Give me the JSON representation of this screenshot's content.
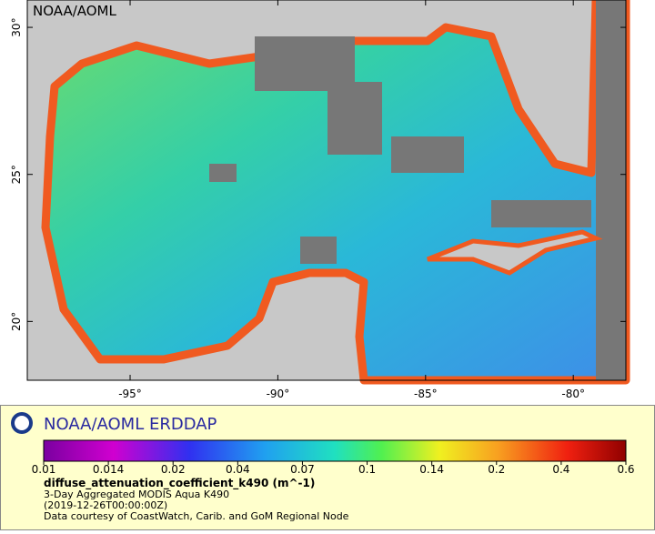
{
  "map": {
    "watermark": "NOAA/AOML",
    "lonlim": [
      -98.48,
      -78.22
    ],
    "latlim": [
      18,
      30.93
    ],
    "lon_ticks": [
      {
        "value": -95,
        "label": "-95°"
      },
      {
        "value": -90,
        "label": "-90°"
      },
      {
        "value": -85,
        "label": "-85°"
      },
      {
        "value": -80,
        "label": "-80°"
      }
    ],
    "lat_ticks": [
      {
        "value": 30,
        "label": "30°"
      },
      {
        "value": 25,
        "label": "25°"
      },
      {
        "value": 20,
        "label": "20°"
      }
    ]
  },
  "legend": {
    "title": "NOAA/AOML ERDDAP",
    "colorbar_ticks": [
      0.01,
      0.014,
      0.02,
      0.04,
      0.07,
      0.1,
      0.14,
      0.2,
      0.4,
      0.6
    ],
    "variable": "diffuse_attenuation_coefficient_k490 (m^-1)",
    "lines": [
      "3-Day Aggregated MODIS Aqua K490",
      "(2019-12-26T00:00:00Z)",
      "Data courtesy of CoastWatch, Carib. and GoM Regional Node"
    ]
  }
}
